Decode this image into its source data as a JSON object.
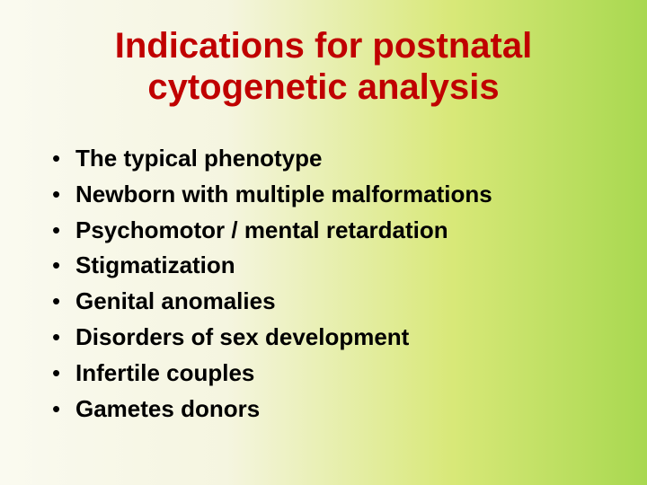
{
  "title_line1": "Indications for postnatal",
  "title_line2": "cytogenetic analysis",
  "bullets": [
    "The typical phenotype",
    "Newborn with multiple malformations",
    "Psychomotor / mental  retardation",
    "Stigmatization",
    "Genital anomalies",
    "Disorders of sex development",
    "Infertile couples",
    "Gametes donors"
  ],
  "colors": {
    "title": "#c00000",
    "text": "#000000",
    "bg_left": "#fafaf0",
    "bg_right": "#a8d850"
  },
  "fontsize": {
    "title": 40,
    "bullet": 26
  }
}
